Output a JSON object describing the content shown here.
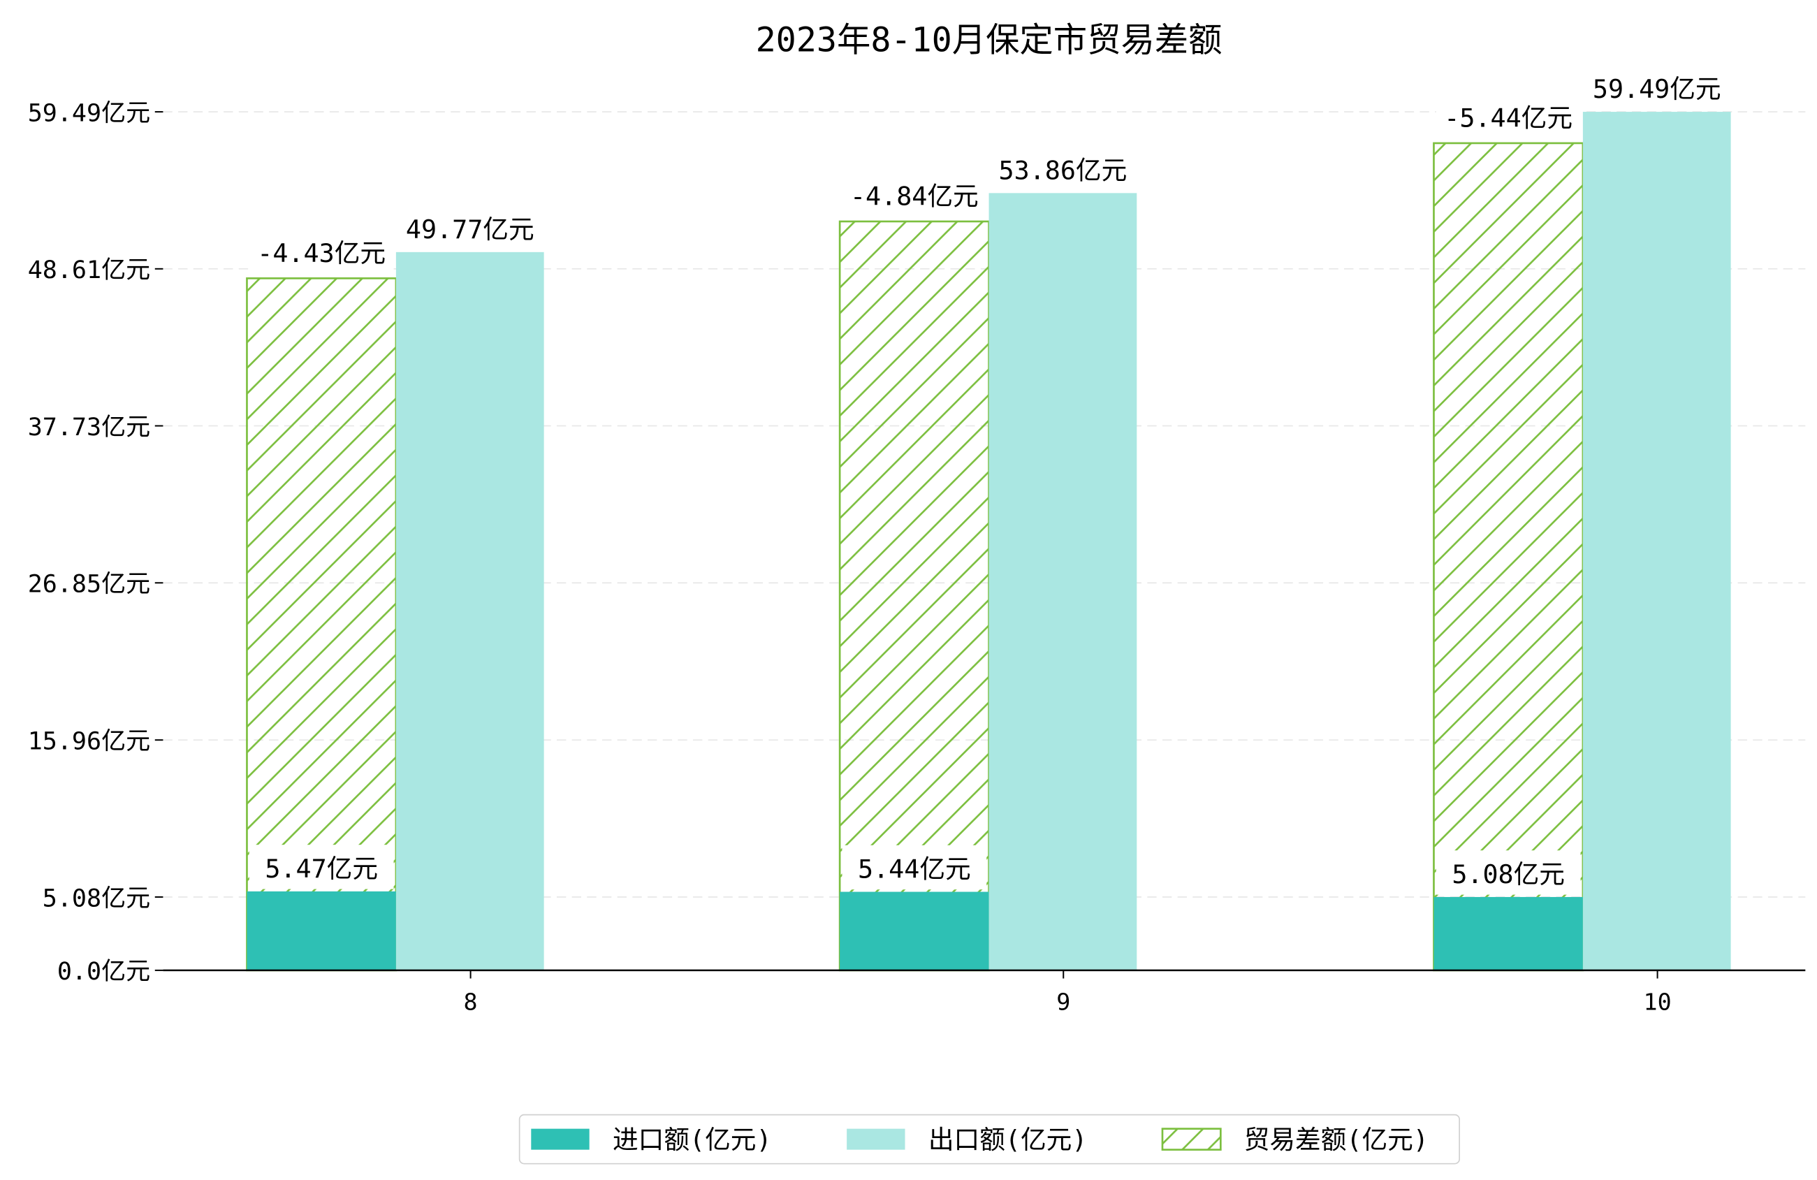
{
  "chart_data": {
    "type": "bar",
    "title": "2023年8-10月保定市贸易差额",
    "xlabel": "",
    "ylabel": "",
    "categories": [
      "8",
      "9",
      "10"
    ],
    "series": [
      {
        "name": "进口额(亿元)",
        "values": [
          5.47,
          5.44,
          5.08
        ],
        "color": "#2ec0b4",
        "labels": [
          "5.47亿元",
          "5.44亿元",
          "5.08亿元"
        ]
      },
      {
        "name": "出口额(亿元)",
        "values": [
          49.77,
          53.86,
          59.49
        ],
        "color": "#aae7e2",
        "labels": [
          "49.77亿元",
          "53.86亿元",
          "59.49亿元"
        ]
      },
      {
        "name": "贸易差额(亿元)",
        "values": [
          -4.43,
          -4.84,
          -5.44
        ],
        "color": "#7cbf3f",
        "labels": [
          "-4.43亿元",
          "-4.84亿元",
          "-5.44亿元"
        ]
      }
    ],
    "yticks": [
      0.0,
      5.08,
      15.96,
      26.85,
      37.73,
      48.61,
      59.49
    ],
    "ytick_labels": [
      "0.0亿元",
      "5.08亿元",
      "15.96亿元",
      "26.85亿元",
      "37.73亿元",
      "48.61亿元",
      "59.49亿元"
    ],
    "ylim": [
      0,
      59.49
    ],
    "grid": "horizontal dashed",
    "legend_position": "bottom-center"
  }
}
